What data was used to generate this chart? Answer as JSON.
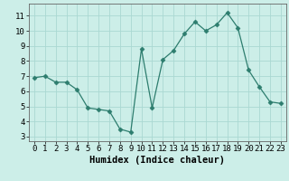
{
  "x": [
    0,
    1,
    2,
    3,
    4,
    5,
    6,
    7,
    8,
    9,
    10,
    11,
    12,
    13,
    14,
    15,
    16,
    17,
    18,
    19,
    20,
    21,
    22,
    23
  ],
  "y": [
    6.9,
    7.0,
    6.6,
    6.6,
    6.1,
    4.9,
    4.8,
    4.7,
    3.5,
    3.3,
    8.8,
    4.9,
    8.1,
    8.7,
    9.8,
    10.6,
    10.0,
    10.4,
    11.2,
    10.2,
    7.4,
    6.3,
    5.3,
    5.2
  ],
  "xlabel": "Humidex (Indice chaleur)",
  "xlim": [
    -0.5,
    23.5
  ],
  "ylim": [
    2.7,
    11.8
  ],
  "yticks": [
    3,
    4,
    5,
    6,
    7,
    8,
    9,
    10,
    11
  ],
  "xticks": [
    0,
    1,
    2,
    3,
    4,
    5,
    6,
    7,
    8,
    9,
    10,
    11,
    12,
    13,
    14,
    15,
    16,
    17,
    18,
    19,
    20,
    21,
    22,
    23
  ],
  "line_color": "#2d7d6e",
  "marker": "D",
  "marker_size": 2.5,
  "bg_color": "#cceee8",
  "grid_color": "#aad8d2",
  "xlabel_fontsize": 7.5,
  "tick_fontsize": 6.5
}
